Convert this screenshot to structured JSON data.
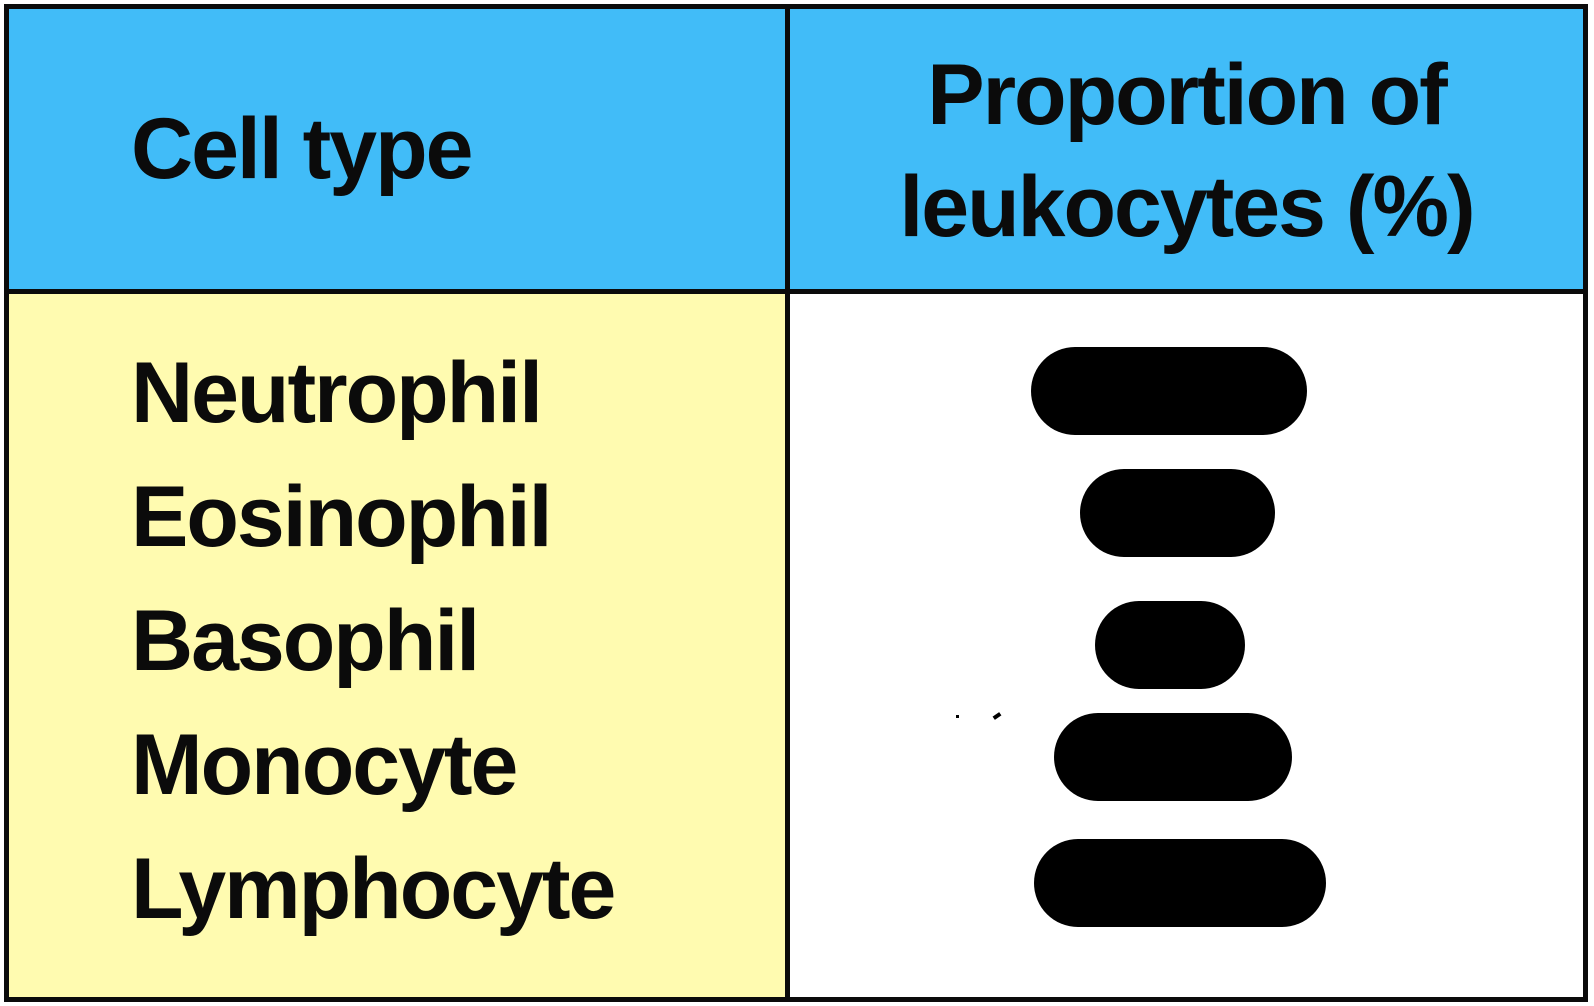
{
  "header": {
    "col1": "Cell type",
    "col2_line1": "Proportion of",
    "col2_line2": "leukocytes (%)"
  },
  "rows": [
    {
      "cell_type": "Neutrophil"
    },
    {
      "cell_type": "Eosinophil"
    },
    {
      "cell_type": "Basophil"
    },
    {
      "cell_type": "Monocyte"
    },
    {
      "cell_type": "Lymphocyte"
    }
  ],
  "colors": {
    "header_bg": "#41bcf8",
    "left_column_bg": "#fffbb0",
    "right_column_bg": "#ffffff",
    "border": "#0b0b0b",
    "redaction": "#000000"
  }
}
